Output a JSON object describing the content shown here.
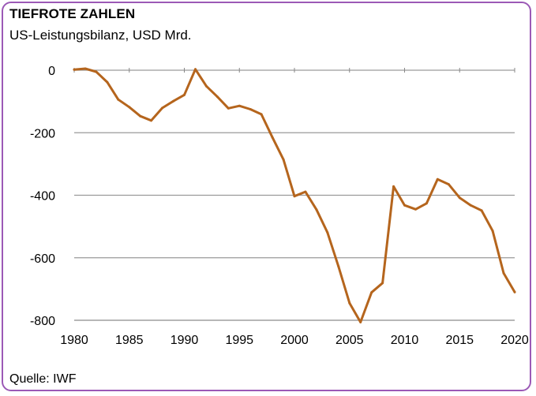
{
  "header": {
    "title": "TIEFROTE ZAHLEN",
    "subtitle": "US-Leistungsbilanz, USD Mrd."
  },
  "footer": {
    "source": "Quelle: IWF"
  },
  "colors": {
    "line": "#b5651d",
    "frame": "#9b59b6",
    "grid": "#9a9a9a"
  },
  "chart_data": {
    "type": "line",
    "title": "TIEFROTE ZAHLEN",
    "subtitle": "US-Leistungsbilanz, USD Mrd.",
    "xlabel": "",
    "ylabel": "",
    "xlim": [
      1980,
      2020
    ],
    "ylim": [
      -800,
      0
    ],
    "x_ticks": [
      1980,
      1985,
      1990,
      1995,
      2000,
      2005,
      2010,
      2015,
      2020
    ],
    "y_ticks": [
      0,
      -200,
      -400,
      -600,
      -800
    ],
    "grid": true,
    "series": [
      {
        "color": "#b5651d",
        "x": [
          1980,
          1981,
          1982,
          1983,
          1984,
          1985,
          1986,
          1987,
          1988,
          1989,
          1990,
          1991,
          1992,
          1993,
          1994,
          1995,
          1996,
          1997,
          1998,
          1999,
          2000,
          2001,
          2002,
          2003,
          2004,
          2005,
          2006,
          2007,
          2008,
          2009,
          2010,
          2011,
          2012,
          2013,
          2014,
          2015,
          2016,
          2017,
          2018,
          2019,
          2020
        ],
        "values": [
          2,
          5,
          -5,
          -38,
          -94,
          -118,
          -147,
          -161,
          -121,
          -99,
          -79,
          3,
          -51,
          -85,
          -122,
          -114,
          -125,
          -141,
          -215,
          -286,
          -403,
          -389,
          -446,
          -519,
          -628,
          -745,
          -806,
          -711,
          -681,
          -372,
          -432,
          -445,
          -426,
          -349,
          -365,
          -408,
          -432,
          -449,
          -514,
          -649,
          -710
        ]
      }
    ]
  }
}
